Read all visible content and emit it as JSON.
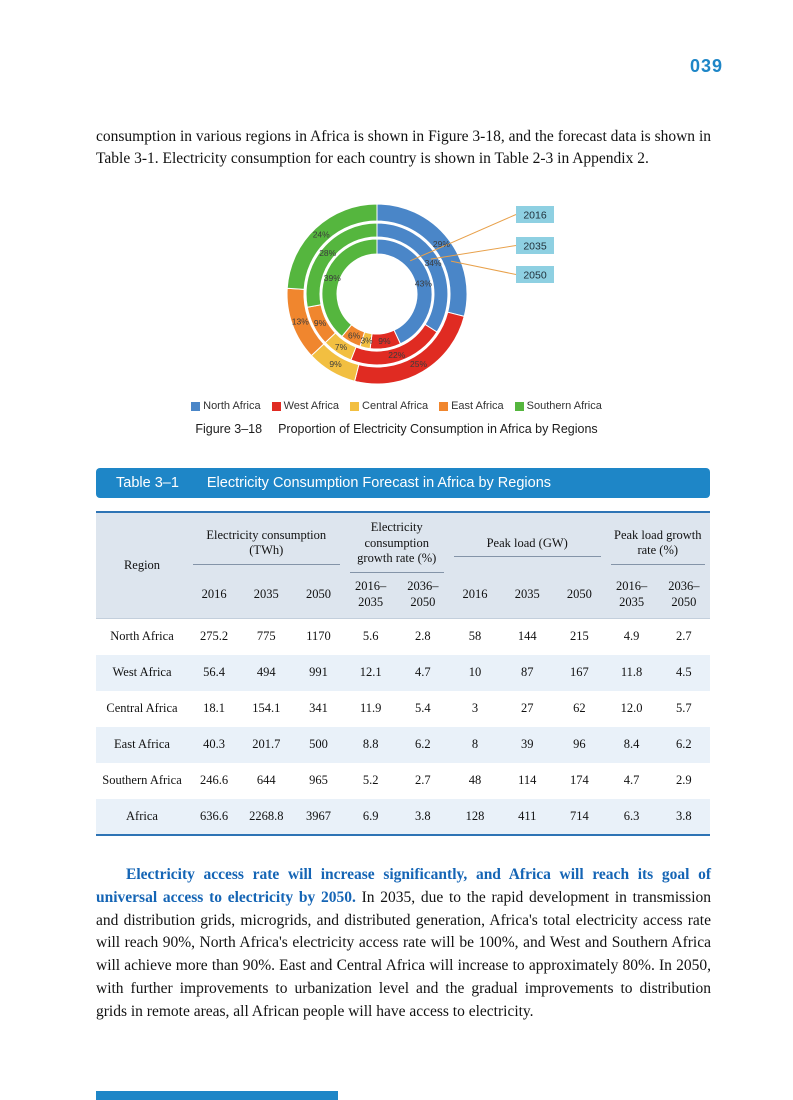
{
  "page_number": "039",
  "colors": {
    "accent_blue": "#1e86c7",
    "emphasis_blue": "#1565b5",
    "leader_line": "#e8a14b",
    "year_box": "#8ed0e2",
    "table_border": "#2e74b5"
  },
  "intro_paragraph": "consumption in various regions in Africa is shown in Figure 3-18, and the forecast data is shown in Table 3-1. Electricity consumption for each country is shown in Table 2-3 in Appendix 2.",
  "figure": {
    "caption_label": "Figure 3–18",
    "caption_text": "Proportion of Electricity Consumption in Africa by Regions",
    "legend": [
      {
        "label": "North Africa",
        "color": "#4a86c8"
      },
      {
        "label": "West Africa",
        "color": "#e02b22"
      },
      {
        "label": "Central Africa",
        "color": "#f2bf41"
      },
      {
        "label": "East Africa",
        "color": "#f0862e"
      },
      {
        "label": "Southern Africa",
        "color": "#55b63e"
      }
    ]
  },
  "chart_data": {
    "type": "donut-multi-ring",
    "title": "Proportion of Electricity Consumption in Africa by Regions",
    "categories": [
      "North Africa",
      "West Africa",
      "Central Africa",
      "East Africa",
      "Southern Africa"
    ],
    "colors": [
      "#4a86c8",
      "#e02b22",
      "#f2bf41",
      "#f0862e",
      "#55b63e"
    ],
    "unit": "%",
    "rings": [
      {
        "name": "2016",
        "position": "inner",
        "values_pct": [
          43,
          9,
          3,
          6,
          39
        ]
      },
      {
        "name": "2035",
        "position": "middle",
        "values_pct": [
          34,
          22,
          7,
          9,
          28
        ]
      },
      {
        "name": "2050",
        "position": "outer",
        "values_pct": [
          29,
          25,
          9,
          13,
          24
        ]
      }
    ],
    "legend_position": "bottom"
  },
  "table": {
    "title_label": "Table 3–1",
    "title_text": "Electricity Consumption Forecast in Africa by Regions",
    "region_header": "Region",
    "col_groups": [
      {
        "label": "Electricity consumption (TWh)",
        "cols": [
          "2016",
          "2035",
          "2050"
        ]
      },
      {
        "label": "Electricity consumption growth rate (%)",
        "cols": [
          "2016–\n2035",
          "2036–\n2050"
        ]
      },
      {
        "label": "Peak load (GW)",
        "cols": [
          "2016",
          "2035",
          "2050"
        ]
      },
      {
        "label": "Peak load growth rate (%)",
        "cols": [
          "2016–\n2035",
          "2036–\n2050"
        ]
      }
    ],
    "rows": [
      {
        "region": "North Africa",
        "values": [
          "275.2",
          "775",
          "1170",
          "5.6",
          "2.8",
          "58",
          "144",
          "215",
          "4.9",
          "2.7"
        ]
      },
      {
        "region": "West Africa",
        "values": [
          "56.4",
          "494",
          "991",
          "12.1",
          "4.7",
          "10",
          "87",
          "167",
          "11.8",
          "4.5"
        ]
      },
      {
        "region": "Central Africa",
        "values": [
          "18.1",
          "154.1",
          "341",
          "11.9",
          "5.4",
          "3",
          "27",
          "62",
          "12.0",
          "5.7"
        ]
      },
      {
        "region": "East Africa",
        "values": [
          "40.3",
          "201.7",
          "500",
          "8.8",
          "6.2",
          "8",
          "39",
          "96",
          "8.4",
          "6.2"
        ]
      },
      {
        "region": "Southern Africa",
        "values": [
          "246.6",
          "644",
          "965",
          "5.2",
          "2.7",
          "48",
          "114",
          "174",
          "4.7",
          "2.9"
        ]
      },
      {
        "region": "Africa",
        "values": [
          "636.6",
          "2268.8",
          "3967",
          "6.9",
          "3.8",
          "128",
          "411",
          "714",
          "6.3",
          "3.8"
        ]
      }
    ]
  },
  "closing_paragraph": {
    "lead_bold_blue": "Electricity access rate will increase significantly, and Africa will reach its goal of universal access to electricity by 2050.",
    "rest": " In 2035, due to the rapid development in transmission and distribution grids, microgrids, and distributed generation, Africa's total electricity access rate will reach 90%, North Africa's electricity access rate will be 100%, and West and Southern Africa will achieve more than 90%. East and Central Africa will increase to approximately 80%. In 2050, with further improvements to urbanization level and the gradual improvements to distribution grids in remote areas, all African people will have access to electricity."
  }
}
